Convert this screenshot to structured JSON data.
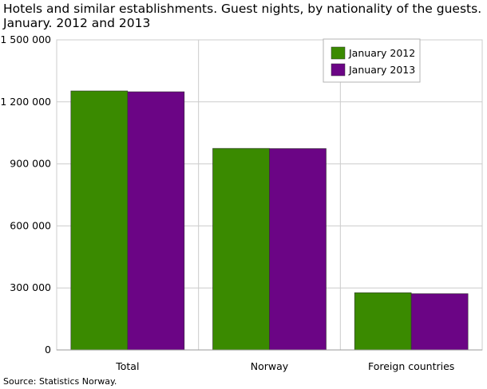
{
  "chart_data": {
    "type": "bar",
    "title": "Hotels and similar establishments. Guest nights, by nationality of the guests.",
    "subtitle": "January. 2012 and 2013",
    "categories": [
      "Total",
      "Norway",
      "Foreign countries"
    ],
    "series": [
      {
        "name": "January 2012",
        "color": "#3a8a00",
        "values": [
          1253000,
          975000,
          277000
        ]
      },
      {
        "name": "January 2013",
        "color": "#6b0585",
        "values": [
          1249000,
          974000,
          272000
        ]
      }
    ],
    "ylim": [
      0,
      1500000
    ],
    "yticks": [
      0,
      300000,
      600000,
      900000,
      1200000,
      1500000
    ],
    "ytick_labels": [
      "0",
      "300 000",
      "600 000",
      "900 000",
      "1 200 000",
      "1 500 000"
    ],
    "grid": true,
    "legend_position": "top-right"
  },
  "source": "Source: Statistics Norway."
}
